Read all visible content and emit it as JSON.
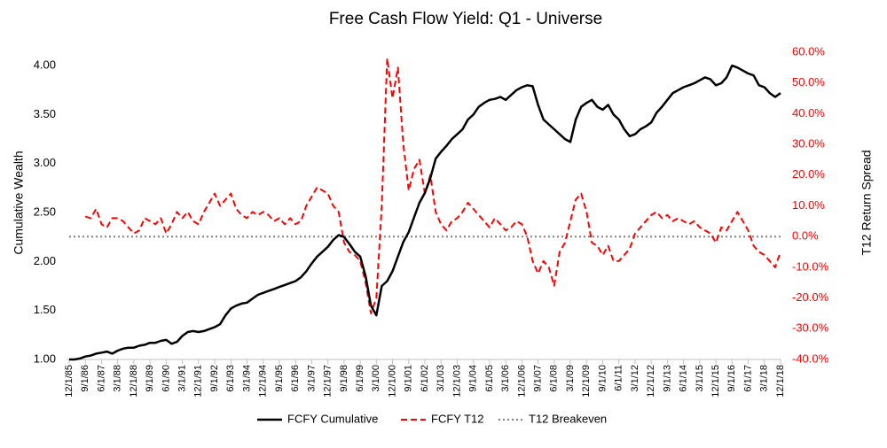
{
  "chart_data": {
    "type": "line",
    "title": "Free Cash Flow Yield: Q1 - Universe",
    "ylabel": "Cumulative Wealth",
    "y2label": "T12 Return Spread",
    "categories": [
      "12/1/85",
      null,
      null,
      "9/1/86",
      null,
      null,
      "6/1/87",
      null,
      null,
      "3/1/88",
      null,
      null,
      "12/1/88",
      null,
      null,
      "9/1/89",
      null,
      null,
      "6/1/90",
      null,
      null,
      "3/1/91",
      null,
      null,
      "12/1/91",
      null,
      null,
      "9/1/92",
      null,
      null,
      "6/1/93",
      null,
      null,
      "3/1/94",
      null,
      null,
      "12/1/94",
      null,
      null,
      "9/1/95",
      null,
      null,
      "6/1/96",
      null,
      null,
      "3/1/97",
      null,
      null,
      "12/1/97",
      null,
      null,
      "9/1/98",
      null,
      null,
      "6/1/99",
      null,
      null,
      "3/1/00",
      null,
      null,
      "12/1/00",
      null,
      null,
      "9/1/01",
      null,
      null,
      "6/1/02",
      null,
      null,
      "3/1/03",
      null,
      null,
      "12/1/03",
      null,
      null,
      "9/1/04",
      null,
      null,
      "6/1/05",
      null,
      null,
      "3/1/06",
      null,
      null,
      "12/1/06",
      null,
      null,
      "9/1/07",
      null,
      null,
      "6/1/08",
      null,
      null,
      "3/1/09",
      null,
      null,
      "12/1/09",
      null,
      null,
      "9/1/10",
      null,
      null,
      "6/1/11",
      null,
      null,
      "3/1/12",
      null,
      null,
      "12/1/12",
      null,
      null,
      "9/1/13",
      null,
      null,
      "6/1/14",
      null,
      null,
      "3/1/15",
      null,
      null,
      "12/1/15",
      null,
      null,
      "9/1/16",
      null,
      null,
      "6/1/17",
      null,
      null,
      "3/1/18",
      null,
      null,
      "12/1/18"
    ],
    "series": [
      {
        "name": "FCFY Cumulative",
        "color": "#000000",
        "style": "solid",
        "axis": "y",
        "values": [
          1.0,
          1.0,
          1.01,
          1.03,
          1.04,
          1.06,
          1.07,
          1.08,
          1.06,
          1.09,
          1.11,
          1.12,
          1.12,
          1.14,
          1.15,
          1.17,
          1.17,
          1.19,
          1.2,
          1.16,
          1.18,
          1.24,
          1.28,
          1.29,
          1.28,
          1.29,
          1.31,
          1.33,
          1.36,
          1.45,
          1.52,
          1.55,
          1.57,
          1.58,
          1.62,
          1.66,
          1.68,
          1.7,
          1.72,
          1.74,
          1.76,
          1.78,
          1.8,
          1.84,
          1.9,
          1.98,
          2.05,
          2.1,
          2.15,
          2.22,
          2.27,
          2.25,
          2.18,
          2.1,
          2.05,
          1.85,
          1.55,
          1.45,
          1.75,
          1.8,
          1.9,
          2.05,
          2.2,
          2.3,
          2.45,
          2.6,
          2.7,
          2.85,
          3.05,
          3.12,
          3.18,
          3.25,
          3.3,
          3.35,
          3.45,
          3.5,
          3.58,
          3.62,
          3.65,
          3.66,
          3.68,
          3.65,
          3.7,
          3.75,
          3.78,
          3.8,
          3.79,
          3.6,
          3.45,
          3.4,
          3.35,
          3.3,
          3.25,
          3.22,
          3.45,
          3.58,
          3.62,
          3.65,
          3.58,
          3.55,
          3.6,
          3.5,
          3.45,
          3.35,
          3.28,
          3.3,
          3.35,
          3.38,
          3.42,
          3.52,
          3.58,
          3.65,
          3.72,
          3.75,
          3.78,
          3.8,
          3.82,
          3.85,
          3.88,
          3.86,
          3.8,
          3.82,
          3.88,
          4.0,
          3.98,
          3.95,
          3.92,
          3.9,
          3.8,
          3.78,
          3.72,
          3.68,
          3.72
        ]
      },
      {
        "name": "FCFY T12",
        "color": "#ff0000",
        "style": "dashed",
        "axis": "y2",
        "values": [
          null,
          null,
          null,
          6.5,
          6,
          9,
          4,
          3,
          6,
          6,
          5,
          3,
          1,
          2,
          6,
          5,
          4,
          6,
          1,
          4,
          8,
          6,
          8,
          5,
          4,
          8,
          11,
          14,
          10,
          12,
          14,
          9,
          7,
          6,
          8,
          7,
          8,
          7,
          5,
          6,
          4,
          6,
          4,
          5,
          10,
          13,
          16,
          15,
          14,
          10,
          8,
          -2,
          -5,
          -6,
          -8,
          -15,
          -25,
          -20,
          10,
          58,
          45,
          55,
          30,
          15,
          22,
          25,
          14,
          20,
          8,
          4,
          2,
          5,
          6,
          8,
          11,
          9,
          7,
          5,
          3,
          6,
          4,
          2,
          3,
          5,
          4,
          0,
          -8,
          -12,
          -8,
          -10,
          -16,
          -5,
          -2,
          5,
          12,
          14,
          8,
          -2,
          -3,
          -6,
          -3,
          -8,
          -8,
          -6,
          -4,
          1,
          3,
          5,
          7,
          8,
          6,
          7,
          5,
          6,
          5,
          4,
          5,
          3,
          2,
          1,
          -2,
          3,
          2,
          5,
          8,
          5,
          2,
          -3,
          -5,
          -6,
          -8,
          -10,
          -5
        ]
      },
      {
        "name": "T12 Breakeven",
        "color": "#808080",
        "style": "dotted",
        "axis": "y2",
        "values": [
          0,
          0,
          0,
          0,
          0,
          0,
          0,
          0,
          0,
          0,
          0,
          0,
          0,
          0,
          0,
          0,
          0,
          0,
          0,
          0,
          0,
          0,
          0,
          0,
          0,
          0,
          0,
          0,
          0,
          0,
          0,
          0,
          0,
          0,
          0,
          0,
          0,
          0,
          0,
          0,
          0,
          0,
          0,
          0,
          0,
          0,
          0,
          0,
          0,
          0,
          0,
          0,
          0,
          0,
          0,
          0,
          0,
          0,
          0,
          0,
          0,
          0,
          0,
          0,
          0,
          0,
          0,
          0,
          0,
          0,
          0,
          0,
          0,
          0,
          0,
          0,
          0,
          0,
          0,
          0,
          0,
          0,
          0,
          0,
          0,
          0,
          0,
          0,
          0,
          0,
          0,
          0,
          0,
          0,
          0,
          0,
          0,
          0,
          0,
          0,
          0,
          0,
          0,
          0,
          0,
          0,
          0,
          0,
          0,
          0,
          0,
          0,
          0,
          0,
          0,
          0,
          0,
          0,
          0,
          0,
          0,
          0,
          0,
          0,
          0,
          0,
          0,
          0,
          0,
          0,
          0,
          0,
          0
        ]
      }
    ],
    "ylim": [
      1,
      4.2
    ],
    "yticks": [
      {
        "value": 1,
        "label": "1.00"
      },
      {
        "value": 1.5,
        "label": "1.50"
      },
      {
        "value": 2,
        "label": "2.00"
      },
      {
        "value": 2.5,
        "label": "2.50"
      },
      {
        "value": 3,
        "label": "3.00"
      },
      {
        "value": 3.5,
        "label": "3.50"
      },
      {
        "value": 4,
        "label": "4.00"
      }
    ],
    "y2lim": [
      -40,
      62
    ],
    "y2ticks": [
      {
        "value": -40,
        "label": "-40.0%"
      },
      {
        "value": -30,
        "label": "-30.0%"
      },
      {
        "value": -20,
        "label": "-20.0%"
      },
      {
        "value": -10,
        "label": "-10.0%"
      },
      {
        "value": 0,
        "label": "0.0%"
      },
      {
        "value": 10,
        "label": "10.0%"
      },
      {
        "value": 20,
        "label": "20.0%"
      },
      {
        "value": 30,
        "label": "30.0%"
      },
      {
        "value": 40,
        "label": "40.0%"
      },
      {
        "value": 50,
        "label": "50.0%"
      },
      {
        "value": 60,
        "label": "60.0%"
      }
    ],
    "y2color": "#ff0000",
    "legend": "bottom"
  }
}
